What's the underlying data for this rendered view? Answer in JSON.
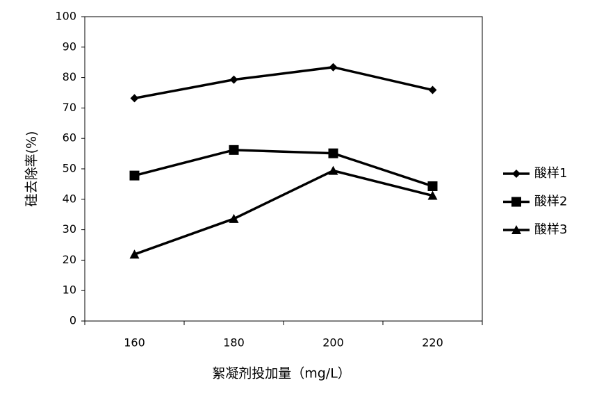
{
  "chart_data": {
    "type": "line",
    "y_label": "硅去除率(%)",
    "x_label": "絮凝剂投加量（mg/L）",
    "categories": [
      "160",
      "180",
      "200",
      "220"
    ],
    "series": [
      {
        "name": "酸样1",
        "color": "#000000",
        "marker": "diamond",
        "values": [
          73.2,
          79.3,
          83.4,
          75.9
        ]
      },
      {
        "name": "酸样2",
        "color": "#000000",
        "marker": "square",
        "values": [
          47.8,
          56.2,
          55.1,
          44.3
        ]
      },
      {
        "name": "酸样3",
        "color": "#000000",
        "marker": "triangle",
        "values": [
          21.9,
          33.6,
          49.4,
          41.2
        ]
      }
    ],
    "ylim": [
      0,
      100
    ],
    "yticks": [
      0,
      10,
      20,
      30,
      40,
      50,
      60,
      70,
      80,
      90,
      100
    ],
    "grid": false,
    "legend": "right"
  }
}
